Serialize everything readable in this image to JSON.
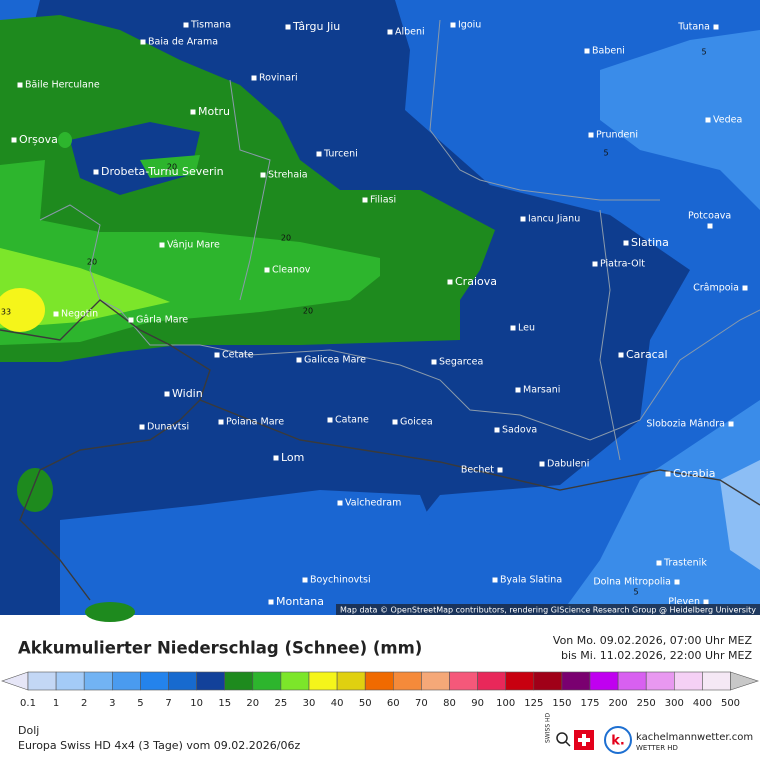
{
  "map": {
    "cities": [
      {
        "name": "Tismana"
      },
      {
        "name": "Târgu Jiu",
        "major": true
      },
      {
        "name": "Albeni"
      },
      {
        "name": "Igoiu"
      },
      {
        "name": "Tutana"
      },
      {
        "name": "Baia de Arama"
      },
      {
        "name": "Babeni"
      },
      {
        "name": "Rovinari"
      },
      {
        "name": "Băile Herculane"
      },
      {
        "name": "Motru",
        "major": true
      },
      {
        "name": "Vedea"
      },
      {
        "name": "Prundeni"
      },
      {
        "name": "Orșova",
        "major": true
      },
      {
        "name": "Turceni"
      },
      {
        "name": "Drobeta-Turnu Severin",
        "major": true
      },
      {
        "name": "Strehaia"
      },
      {
        "name": "Filiasi"
      },
      {
        "name": "Iancu Jianu"
      },
      {
        "name": "Potcoava"
      },
      {
        "name": "Slatina",
        "major": true
      },
      {
        "name": "Vânju Mare"
      },
      {
        "name": "Piatra-Olt"
      },
      {
        "name": "Cleanov"
      },
      {
        "name": "Craiova",
        "major": true
      },
      {
        "name": "Crâmpoia"
      },
      {
        "name": "Negotin"
      },
      {
        "name": "Gârla Mare"
      },
      {
        "name": "Leu"
      },
      {
        "name": "Cetate"
      },
      {
        "name": "Galicea Mare"
      },
      {
        "name": "Segarcea"
      },
      {
        "name": "Caracal",
        "major": true
      },
      {
        "name": "Marsani"
      },
      {
        "name": "Widin",
        "major": true
      },
      {
        "name": "Dunavtsi"
      },
      {
        "name": "Poiana Mare"
      },
      {
        "name": "Catane"
      },
      {
        "name": "Goicea"
      },
      {
        "name": "Sadova"
      },
      {
        "name": "Slobozia Mândra"
      },
      {
        "name": "Lom",
        "major": true
      },
      {
        "name": "Bechet"
      },
      {
        "name": "Dabuleni"
      },
      {
        "name": "Corabia",
        "major": true
      },
      {
        "name": "Valchedram"
      },
      {
        "name": "Trastenik"
      },
      {
        "name": "Boychinovtsi"
      },
      {
        "name": "Byala Slatina"
      },
      {
        "name": "Dolna Mitropolia"
      },
      {
        "name": "Montana",
        "major": true
      },
      {
        "name": "Pleven"
      }
    ],
    "contour_labels": [
      "20",
      "20",
      "20",
      "20",
      "5",
      "5",
      "5",
      "33"
    ],
    "attribution": "Map data © OpenStreetMap contributors, rendering GIScience Research Group @ Heidelberg University"
  },
  "footer": {
    "title": "Akkumulierter Niederschlag (Schnee) (mm)",
    "period_from": "Von Mo. 09.02.2026, 07:00 Uhr MEZ",
    "period_to": "bis Mi. 11.02.2026, 22:00 Uhr MEZ",
    "legend": {
      "labels": [
        "0.1",
        "1",
        "2",
        "3",
        "5",
        "7",
        "10",
        "15",
        "20",
        "25",
        "30",
        "40",
        "50",
        "60",
        "70",
        "80",
        "90",
        "100",
        "125",
        "150",
        "175",
        "200",
        "250",
        "300",
        "400",
        "500"
      ],
      "colors": [
        "#e6e6f7",
        "#c3d7f5",
        "#a4cbf7",
        "#72b3f3",
        "#4a9bef",
        "#2483ec",
        "#176acf",
        "#12419a",
        "#1e8a1e",
        "#2db52d",
        "#7ce62a",
        "#f5f51a",
        "#e0d010",
        "#f06a00",
        "#f58a3a",
        "#f5a878",
        "#f5587a",
        "#e8285a",
        "#c80010",
        "#a00018",
        "#7a0070",
        "#c000f0",
        "#d860f0",
        "#e898f0",
        "#f5d0f5",
        "#f5e8f5",
        "#c8c8c8"
      ]
    },
    "region": "Dolj",
    "model": "Europa Swiss HD 4x4 (3 Tage) vom 09.02.2026/06z",
    "brand": "kachelmannwetter.com",
    "brand_sub": "WETTER HD",
    "swiss": "SWISS HD"
  }
}
